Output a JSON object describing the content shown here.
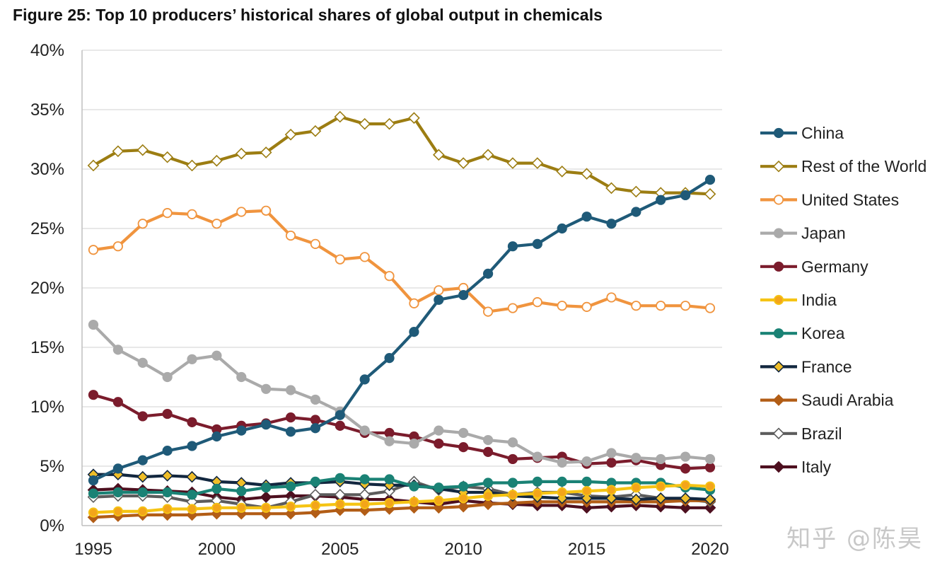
{
  "title": "Figure 25: Top 10 producers’ historical shares of global output in chemicals",
  "watermark": "知乎 @陈昊",
  "chart_data": {
    "type": "line",
    "title": "Figure 25: Top 10 producers’ historical shares of global output in chemicals",
    "xlabel": "",
    "ylabel": "",
    "x": [
      1995,
      1996,
      1997,
      1998,
      1999,
      2000,
      2001,
      2002,
      2003,
      2004,
      2005,
      2006,
      2007,
      2008,
      2009,
      2010,
      2011,
      2012,
      2013,
      2014,
      2015,
      2016,
      2017,
      2018,
      2019,
      2020
    ],
    "xlim": [
      1995,
      2020
    ],
    "ylim": [
      0,
      40
    ],
    "x_ticks": [
      "1995",
      "2000",
      "2005",
      "2010",
      "2015",
      "2020"
    ],
    "y_ticks": [
      "0%",
      "5%",
      "10%",
      "15%",
      "20%",
      "25%",
      "30%",
      "35%",
      "40%"
    ],
    "grid": "horizontal",
    "legend_position": "right",
    "series": [
      {
        "name": "China",
        "color": "#1f5a78",
        "marker": "circle",
        "fill": "#1f5a78",
        "values": [
          3.8,
          4.8,
          5.5,
          6.3,
          6.7,
          7.5,
          8.0,
          8.5,
          7.9,
          8.2,
          9.3,
          12.3,
          14.1,
          16.3,
          19.0,
          19.4,
          21.2,
          23.5,
          23.7,
          25.0,
          26.0,
          25.4,
          26.4,
          27.4,
          27.8,
          29.1
        ]
      },
      {
        "name": "Rest of the World",
        "color": "#9c7d12",
        "marker": "diamond",
        "fill": "#ffffff",
        "values": [
          30.3,
          31.5,
          31.6,
          31.0,
          30.3,
          30.7,
          31.3,
          31.4,
          32.9,
          33.2,
          34.4,
          33.8,
          33.8,
          34.3,
          31.2,
          30.5,
          31.2,
          30.5,
          30.5,
          29.8,
          29.6,
          28.4,
          28.1,
          28.0,
          28.0,
          27.9
        ]
      },
      {
        "name": "United States",
        "color": "#f0943e",
        "marker": "circle",
        "fill": "#ffffff",
        "values": [
          23.2,
          23.5,
          25.4,
          26.3,
          26.2,
          25.4,
          26.4,
          26.5,
          24.4,
          23.7,
          22.4,
          22.6,
          21.0,
          18.7,
          19.8,
          20.0,
          18.0,
          18.3,
          18.8,
          18.5,
          18.4,
          19.2,
          18.5,
          18.5,
          18.5,
          18.3
        ]
      },
      {
        "name": "Japan",
        "color": "#aaaaaa",
        "marker": "circle",
        "fill": "#aaaaaa",
        "values": [
          16.9,
          14.8,
          13.7,
          12.5,
          14.0,
          14.3,
          12.5,
          11.5,
          11.4,
          10.6,
          9.6,
          8.0,
          7.1,
          6.9,
          8.0,
          7.8,
          7.2,
          7.0,
          5.8,
          5.3,
          5.4,
          6.1,
          5.7,
          5.6,
          5.8,
          5.6
        ]
      },
      {
        "name": "Germany",
        "color": "#7b1c2c",
        "marker": "circle",
        "fill": "#7b1c2c",
        "values": [
          11.0,
          10.4,
          9.2,
          9.4,
          8.7,
          8.1,
          8.4,
          8.6,
          9.1,
          8.9,
          8.4,
          7.8,
          7.8,
          7.5,
          6.9,
          6.6,
          6.2,
          5.6,
          5.7,
          5.8,
          5.2,
          5.3,
          5.5,
          5.1,
          4.8,
          4.9
        ]
      },
      {
        "name": "India",
        "color": "#f5c414",
        "marker": "circle",
        "fill": "#f3a51a",
        "values": [
          1.1,
          1.2,
          1.2,
          1.4,
          1.4,
          1.5,
          1.5,
          1.5,
          1.6,
          1.7,
          1.8,
          1.8,
          1.9,
          2.0,
          2.1,
          2.3,
          2.5,
          2.6,
          2.7,
          2.8,
          2.9,
          3.0,
          3.2,
          3.3,
          3.4,
          3.3
        ]
      },
      {
        "name": "Korea",
        "color": "#1a8275",
        "marker": "circle",
        "fill": "#1a8275",
        "values": [
          2.7,
          2.8,
          2.8,
          2.8,
          2.6,
          3.1,
          2.9,
          3.2,
          3.3,
          3.7,
          4.0,
          3.9,
          3.9,
          3.3,
          3.2,
          3.3,
          3.6,
          3.6,
          3.7,
          3.7,
          3.7,
          3.6,
          3.6,
          3.6,
          3.2,
          3.0
        ]
      },
      {
        "name": "France",
        "color": "#12273f",
        "marker": "diamond",
        "fill": "#f0be28",
        "values": [
          4.3,
          4.3,
          4.1,
          4.2,
          4.1,
          3.7,
          3.6,
          3.4,
          3.6,
          3.6,
          3.7,
          3.5,
          3.4,
          3.4,
          3.1,
          2.8,
          2.8,
          2.5,
          2.4,
          2.3,
          2.3,
          2.3,
          2.2,
          2.3,
          2.3,
          2.2
        ]
      },
      {
        "name": "Saudi Arabia",
        "color": "#b25d16",
        "marker": "diamond",
        "fill": "#b25d16",
        "values": [
          0.7,
          0.8,
          0.9,
          0.9,
          0.9,
          1.0,
          1.0,
          1.0,
          1.0,
          1.1,
          1.3,
          1.3,
          1.4,
          1.5,
          1.5,
          1.6,
          1.8,
          1.9,
          2.0,
          2.0,
          2.0,
          2.0,
          2.0,
          2.0,
          2.1,
          2.1
        ]
      },
      {
        "name": "Brazil",
        "color": "#5c5c5c",
        "marker": "diamond",
        "fill": "#ffffff",
        "values": [
          2.4,
          2.5,
          2.5,
          2.4,
          2.0,
          2.1,
          1.8,
          1.5,
          2.0,
          2.6,
          2.6,
          2.6,
          2.9,
          3.7,
          3.0,
          3.3,
          3.1,
          2.6,
          2.8,
          2.8,
          2.5,
          2.4,
          2.6,
          2.3,
          2.2,
          2.0
        ]
      },
      {
        "name": "Italy",
        "color": "#4d0f1f",
        "marker": "diamond",
        "fill": "#4d0f1f",
        "values": [
          3.0,
          3.1,
          3.0,
          2.9,
          2.8,
          2.4,
          2.2,
          2.4,
          2.5,
          2.5,
          2.4,
          2.2,
          2.2,
          2.0,
          1.8,
          2.1,
          1.9,
          1.8,
          1.7,
          1.7,
          1.5,
          1.6,
          1.7,
          1.6,
          1.5,
          1.5
        ]
      }
    ]
  }
}
